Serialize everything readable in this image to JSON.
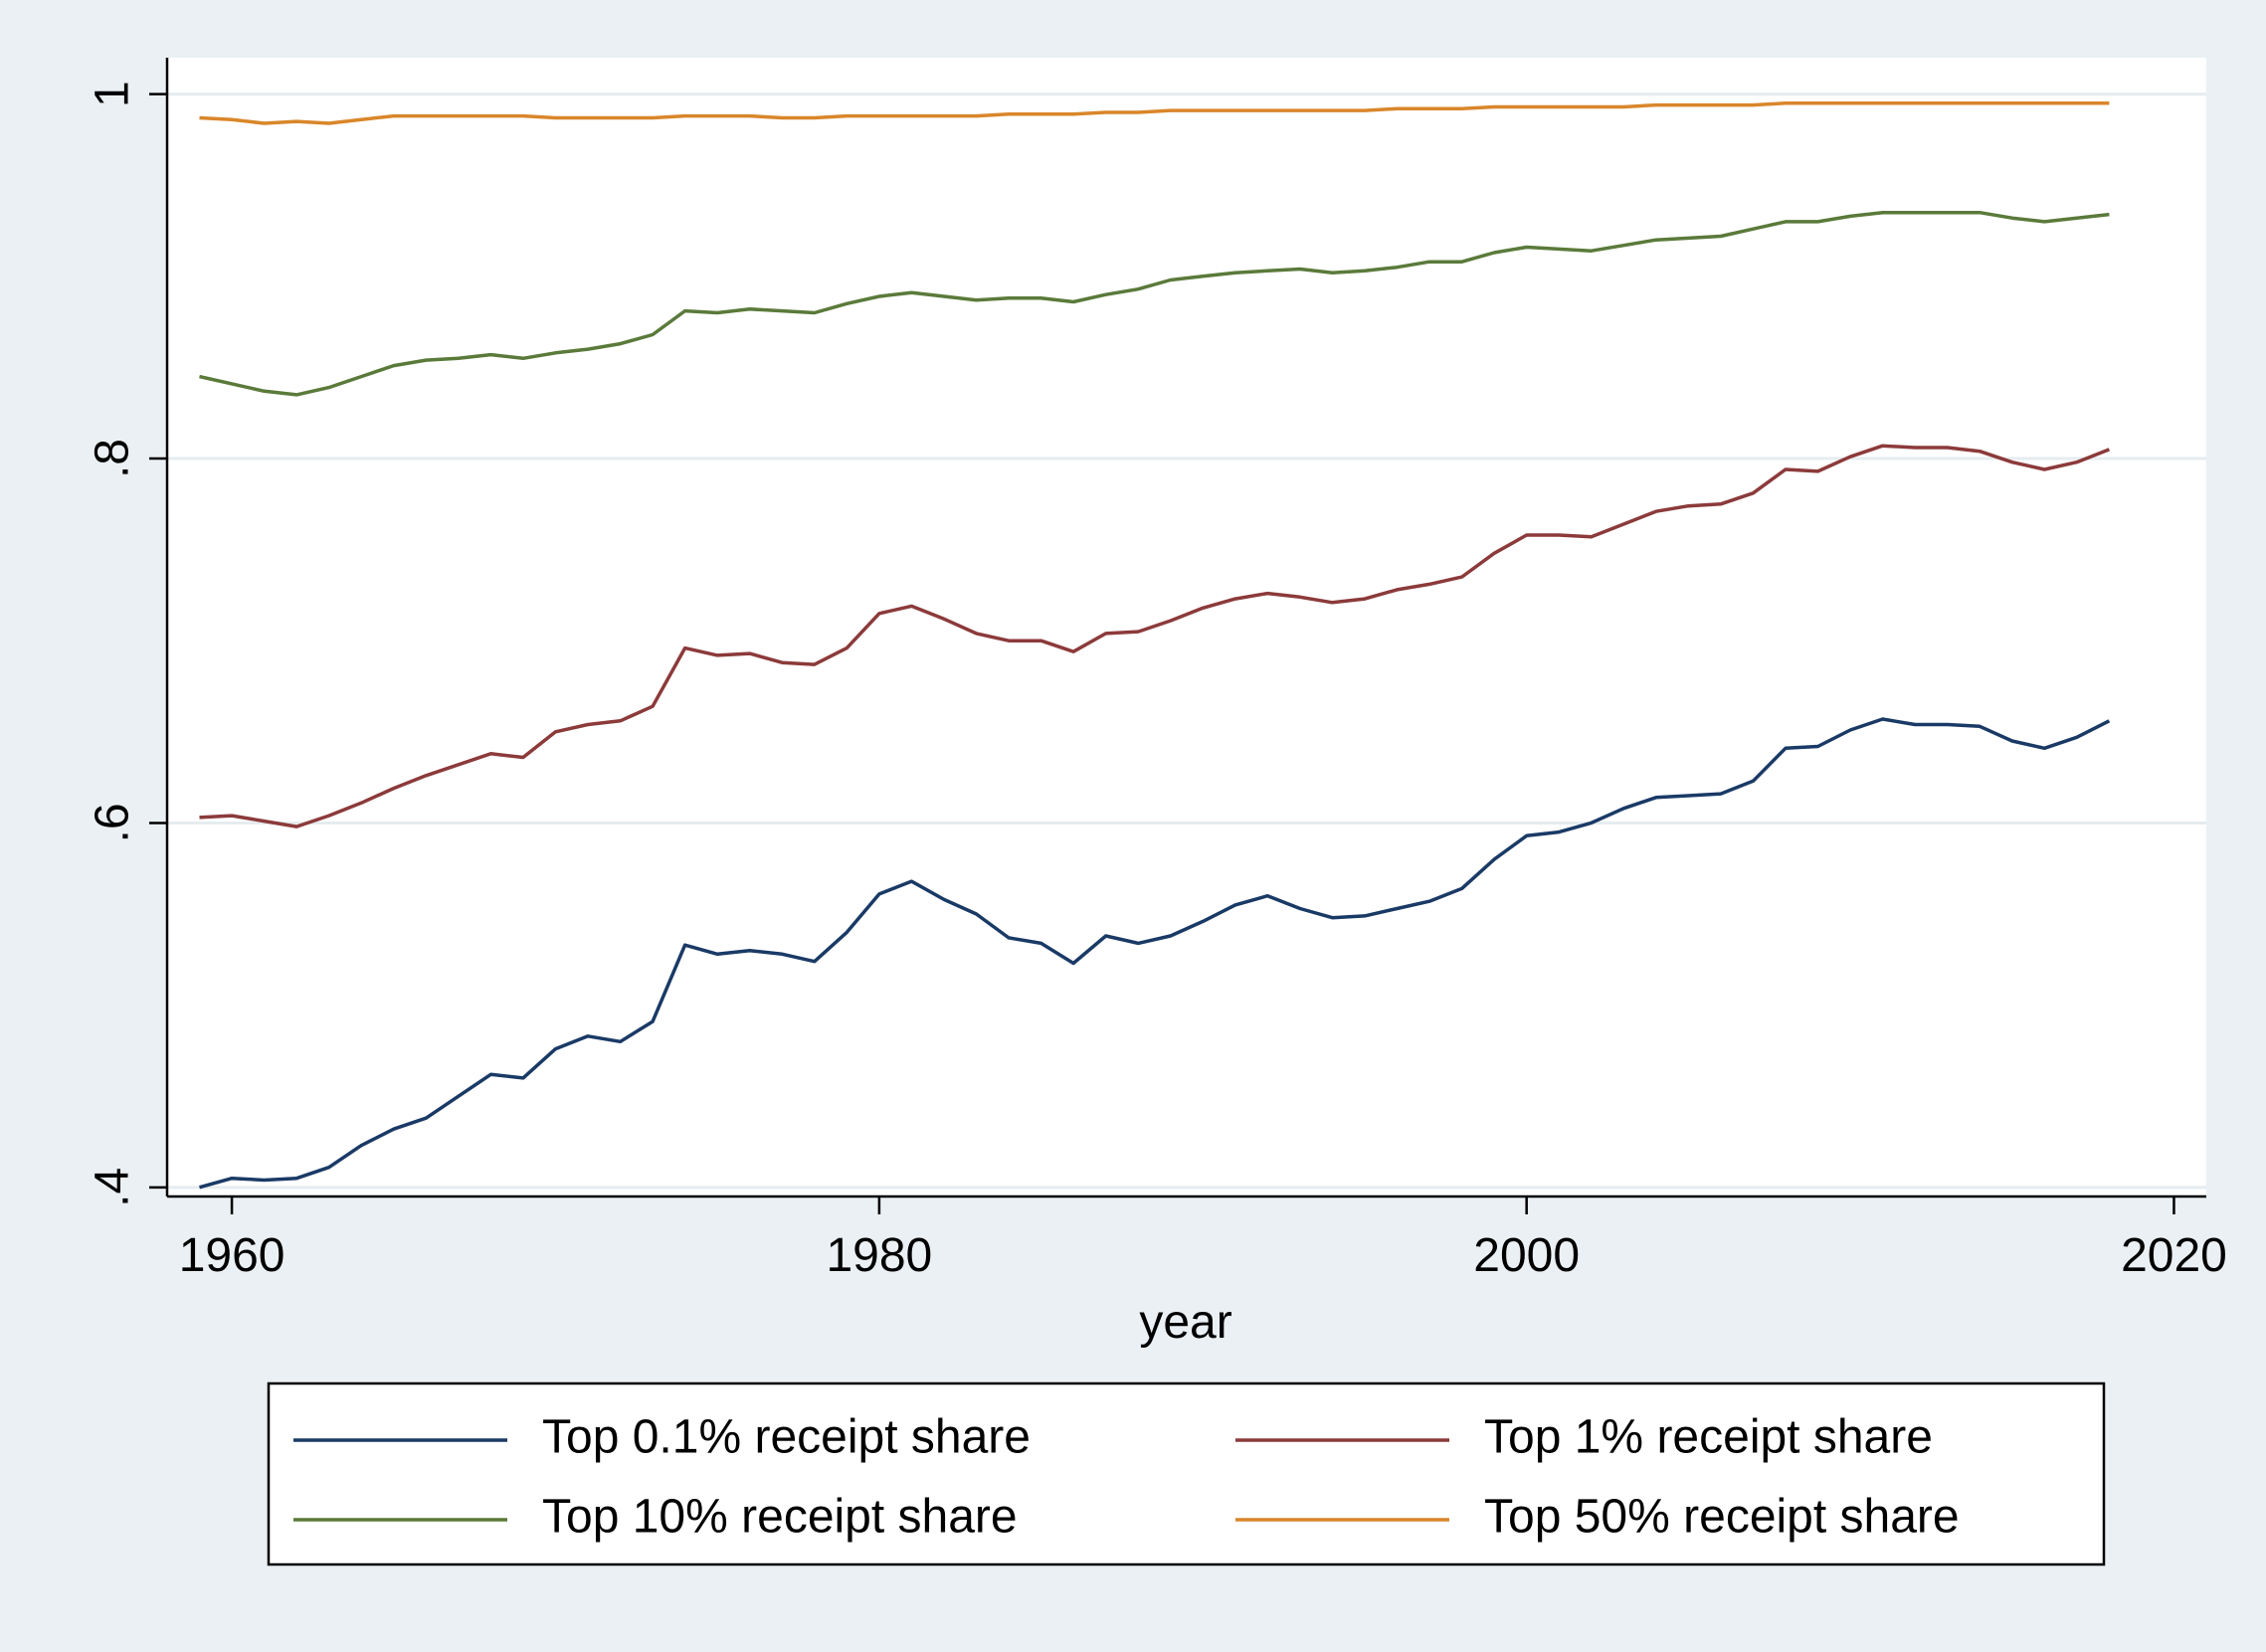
{
  "chart_data": {
    "type": "line",
    "xlabel": "year",
    "ylabel": "",
    "xlim": [
      1958,
      2021
    ],
    "ylim": [
      0.395,
      1.02
    ],
    "xticks": [
      1960,
      1980,
      2000,
      2020
    ],
    "xtick_labels": [
      "1960",
      "1980",
      "2000",
      "2020"
    ],
    "yticks": [
      0.4,
      0.6,
      0.8,
      1.0
    ],
    "ytick_labels": [
      ".4",
      ".6",
      ".8",
      "1"
    ],
    "grid": "horizontal",
    "legend_position": "bottom",
    "x": [
      1959,
      1960,
      1961,
      1962,
      1963,
      1964,
      1965,
      1966,
      1967,
      1968,
      1969,
      1970,
      1971,
      1972,
      1973,
      1974,
      1975,
      1976,
      1977,
      1978,
      1979,
      1980,
      1981,
      1982,
      1983,
      1984,
      1985,
      1986,
      1987,
      1988,
      1989,
      1990,
      1991,
      1992,
      1993,
      1994,
      1995,
      1996,
      1997,
      1998,
      1999,
      2000,
      2001,
      2002,
      2003,
      2004,
      2005,
      2006,
      2007,
      2008,
      2009,
      2010,
      2011,
      2012,
      2013,
      2014,
      2015,
      2016,
      2017,
      2018
    ],
    "series": [
      {
        "name": "Top 0.1% receipt share",
        "color": "#1a3a66",
        "values": [
          0.4,
          0.405,
          0.404,
          0.405,
          0.411,
          0.423,
          0.432,
          0.438,
          0.45,
          0.462,
          0.46,
          0.476,
          0.483,
          0.48,
          0.491,
          0.533,
          0.528,
          0.53,
          0.528,
          0.524,
          0.54,
          0.561,
          0.568,
          0.558,
          0.55,
          0.537,
          0.534,
          0.523,
          0.538,
          0.534,
          0.538,
          0.546,
          0.555,
          0.56,
          0.553,
          0.548,
          0.549,
          0.553,
          0.557,
          0.564,
          0.58,
          0.593,
          0.595,
          0.6,
          0.608,
          0.614,
          0.615,
          0.616,
          0.623,
          0.641,
          0.642,
          0.651,
          0.657,
          0.654,
          0.654,
          0.653,
          0.645,
          0.641,
          0.647,
          0.656
        ]
      },
      {
        "name": "Top 1% receipt share",
        "color": "#8c3a3a",
        "values": [
          0.603,
          0.604,
          0.601,
          0.598,
          0.604,
          0.611,
          0.619,
          0.626,
          0.632,
          0.638,
          0.636,
          0.65,
          0.654,
          0.656,
          0.664,
          0.696,
          0.692,
          0.693,
          0.688,
          0.687,
          0.696,
          0.715,
          0.719,
          0.712,
          0.704,
          0.7,
          0.7,
          0.694,
          0.704,
          0.705,
          0.711,
          0.718,
          0.723,
          0.726,
          0.724,
          0.721,
          0.723,
          0.728,
          0.731,
          0.735,
          0.748,
          0.758,
          0.758,
          0.757,
          0.764,
          0.771,
          0.774,
          0.775,
          0.781,
          0.794,
          0.793,
          0.801,
          0.807,
          0.806,
          0.806,
          0.804,
          0.798,
          0.794,
          0.798,
          0.805
        ]
      },
      {
        "name": "Top 10% receipt share",
        "color": "#5a7a3a",
        "values": [
          0.845,
          0.841,
          0.837,
          0.835,
          0.839,
          0.845,
          0.851,
          0.854,
          0.855,
          0.857,
          0.855,
          0.858,
          0.86,
          0.863,
          0.868,
          0.881,
          0.88,
          0.882,
          0.881,
          0.88,
          0.885,
          0.889,
          0.891,
          0.889,
          0.887,
          0.888,
          0.888,
          0.886,
          0.89,
          0.893,
          0.898,
          0.9,
          0.902,
          0.903,
          0.904,
          0.902,
          0.903,
          0.905,
          0.908,
          0.908,
          0.913,
          0.916,
          0.915,
          0.914,
          0.917,
          0.92,
          0.921,
          0.922,
          0.926,
          0.93,
          0.93,
          0.933,
          0.935,
          0.935,
          0.935,
          0.935,
          0.932,
          0.93,
          0.932,
          0.934
        ]
      },
      {
        "name": "Top 50% receipt share",
        "color": "#d9862a",
        "values": [
          0.987,
          0.986,
          0.984,
          0.985,
          0.984,
          0.986,
          0.988,
          0.988,
          0.988,
          0.988,
          0.988,
          0.987,
          0.987,
          0.987,
          0.987,
          0.988,
          0.988,
          0.988,
          0.987,
          0.987,
          0.988,
          0.988,
          0.988,
          0.988,
          0.988,
          0.989,
          0.989,
          0.989,
          0.99,
          0.99,
          0.991,
          0.991,
          0.991,
          0.991,
          0.991,
          0.991,
          0.991,
          0.992,
          0.992,
          0.992,
          0.993,
          0.993,
          0.993,
          0.993,
          0.993,
          0.994,
          0.994,
          0.994,
          0.994,
          0.995,
          0.995,
          0.995,
          0.995,
          0.995,
          0.995,
          0.995,
          0.995,
          0.995,
          0.995,
          0.995
        ]
      }
    ]
  }
}
